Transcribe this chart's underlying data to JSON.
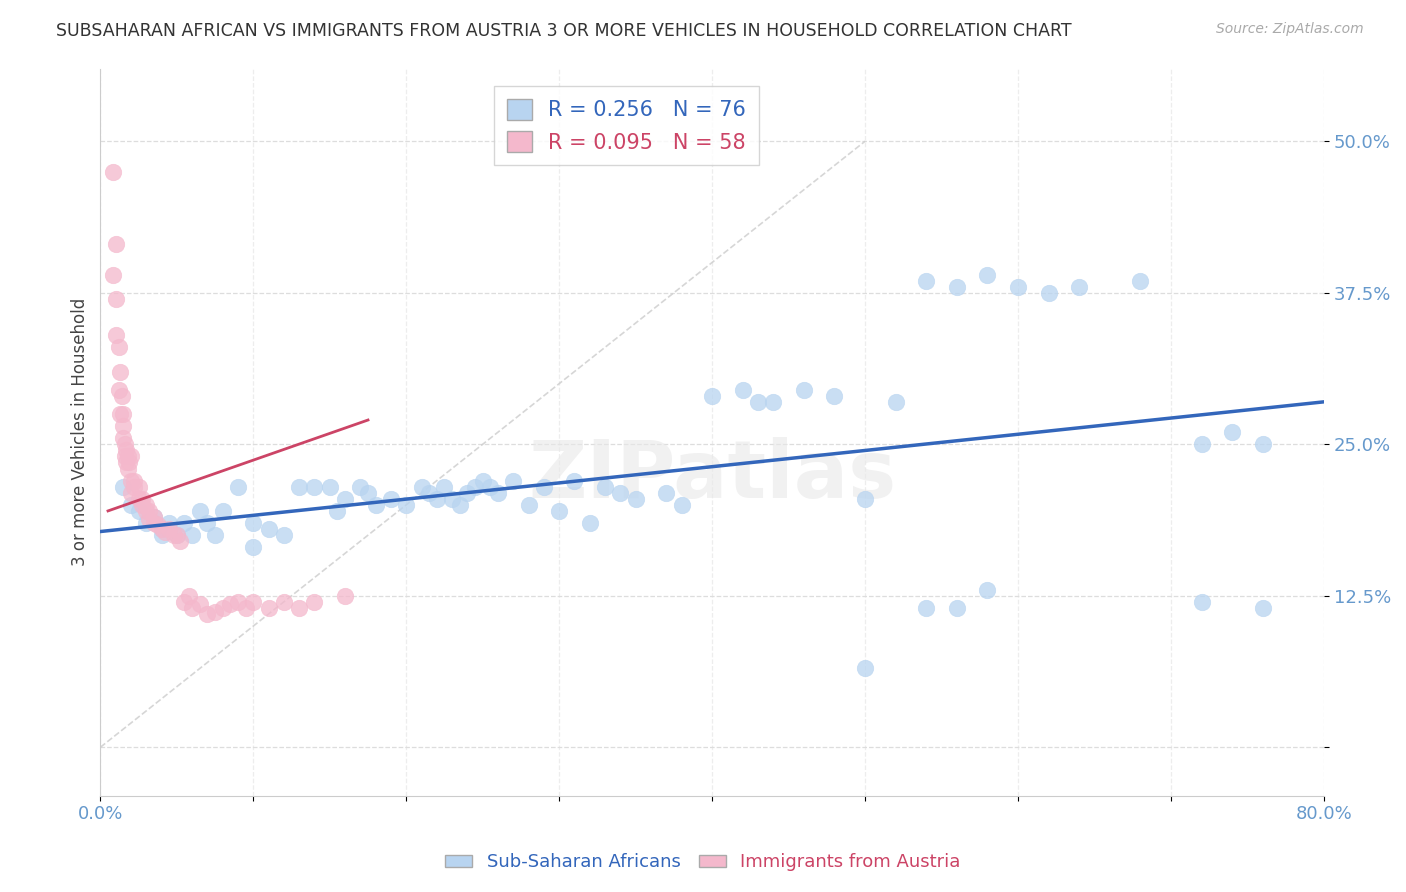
{
  "title": "SUBSAHARAN AFRICAN VS IMMIGRANTS FROM AUSTRIA 3 OR MORE VEHICLES IN HOUSEHOLD CORRELATION CHART",
  "source": "Source: ZipAtlas.com",
  "ylabel": "3 or more Vehicles in Household",
  "xlim": [
    0.0,
    0.8
  ],
  "ylim": [
    -0.04,
    0.56
  ],
  "yticks": [
    0.0,
    0.125,
    0.25,
    0.375,
    0.5
  ],
  "ytick_labels": [
    "",
    "12.5%",
    "25.0%",
    "37.5%",
    "50.0%"
  ],
  "blue_color": "#b8d4f0",
  "pink_color": "#f4b8cc",
  "blue_line_color": "#3366bb",
  "pink_line_color": "#cc4466",
  "ref_line_color": "#cccccc",
  "background_color": "#ffffff",
  "grid_color": "#dddddd",
  "title_color": "#333333",
  "axis_label_color": "#444444",
  "tick_color": "#6699cc",
  "blue_R": 0.256,
  "blue_N": 76,
  "pink_R": 0.095,
  "pink_N": 58,
  "blue_line_x0": 0.0,
  "blue_line_x1": 0.8,
  "blue_line_y0": 0.178,
  "blue_line_y1": 0.285,
  "pink_line_x0": 0.005,
  "pink_line_x1": 0.175,
  "pink_line_y0": 0.195,
  "pink_line_y1": 0.27,
  "ref_line_x0": 0.0,
  "ref_line_x1": 0.5,
  "ref_line_y0": 0.0,
  "ref_line_y1": 0.5,
  "blue_x": [
    0.015,
    0.02,
    0.025,
    0.03,
    0.035,
    0.04,
    0.04,
    0.045,
    0.05,
    0.055,
    0.06,
    0.065,
    0.07,
    0.075,
    0.08,
    0.09,
    0.1,
    0.1,
    0.11,
    0.12,
    0.13,
    0.14,
    0.15,
    0.155,
    0.16,
    0.17,
    0.175,
    0.18,
    0.19,
    0.2,
    0.21,
    0.215,
    0.22,
    0.225,
    0.23,
    0.235,
    0.24,
    0.245,
    0.25,
    0.255,
    0.26,
    0.27,
    0.28,
    0.29,
    0.3,
    0.31,
    0.32,
    0.33,
    0.34,
    0.35,
    0.37,
    0.38,
    0.4,
    0.42,
    0.43,
    0.44,
    0.46,
    0.48,
    0.5,
    0.52,
    0.54,
    0.56,
    0.58,
    0.6,
    0.62,
    0.64,
    0.68,
    0.72,
    0.74,
    0.76,
    0.5,
    0.54,
    0.56,
    0.58,
    0.72,
    0.76
  ],
  "blue_y": [
    0.215,
    0.2,
    0.195,
    0.185,
    0.19,
    0.18,
    0.175,
    0.185,
    0.175,
    0.185,
    0.175,
    0.195,
    0.185,
    0.175,
    0.195,
    0.215,
    0.165,
    0.185,
    0.18,
    0.175,
    0.215,
    0.215,
    0.215,
    0.195,
    0.205,
    0.215,
    0.21,
    0.2,
    0.205,
    0.2,
    0.215,
    0.21,
    0.205,
    0.215,
    0.205,
    0.2,
    0.21,
    0.215,
    0.22,
    0.215,
    0.21,
    0.22,
    0.2,
    0.215,
    0.195,
    0.22,
    0.185,
    0.215,
    0.21,
    0.205,
    0.21,
    0.2,
    0.29,
    0.295,
    0.285,
    0.285,
    0.295,
    0.29,
    0.205,
    0.285,
    0.385,
    0.38,
    0.39,
    0.38,
    0.375,
    0.38,
    0.385,
    0.25,
    0.26,
    0.25,
    0.065,
    0.115,
    0.115,
    0.13,
    0.12,
    0.115
  ],
  "pink_x": [
    0.008,
    0.008,
    0.01,
    0.01,
    0.01,
    0.012,
    0.012,
    0.013,
    0.013,
    0.014,
    0.015,
    0.015,
    0.015,
    0.016,
    0.016,
    0.017,
    0.017,
    0.018,
    0.018,
    0.019,
    0.02,
    0.02,
    0.02,
    0.022,
    0.022,
    0.025,
    0.025,
    0.027,
    0.027,
    0.03,
    0.03,
    0.032,
    0.032,
    0.035,
    0.035,
    0.038,
    0.04,
    0.042,
    0.045,
    0.048,
    0.05,
    0.052,
    0.055,
    0.058,
    0.06,
    0.065,
    0.07,
    0.075,
    0.08,
    0.085,
    0.09,
    0.095,
    0.1,
    0.11,
    0.12,
    0.13,
    0.14,
    0.16
  ],
  "pink_y": [
    0.475,
    0.39,
    0.415,
    0.37,
    0.34,
    0.33,
    0.295,
    0.31,
    0.275,
    0.29,
    0.275,
    0.265,
    0.255,
    0.25,
    0.24,
    0.245,
    0.235,
    0.24,
    0.23,
    0.235,
    0.24,
    0.22,
    0.21,
    0.22,
    0.215,
    0.215,
    0.205,
    0.205,
    0.2,
    0.2,
    0.195,
    0.195,
    0.188,
    0.19,
    0.185,
    0.183,
    0.18,
    0.178,
    0.18,
    0.175,
    0.175,
    0.17,
    0.12,
    0.125,
    0.115,
    0.118,
    0.11,
    0.112,
    0.115,
    0.118,
    0.12,
    0.115,
    0.12,
    0.115,
    0.12,
    0.115,
    0.12,
    0.125
  ]
}
